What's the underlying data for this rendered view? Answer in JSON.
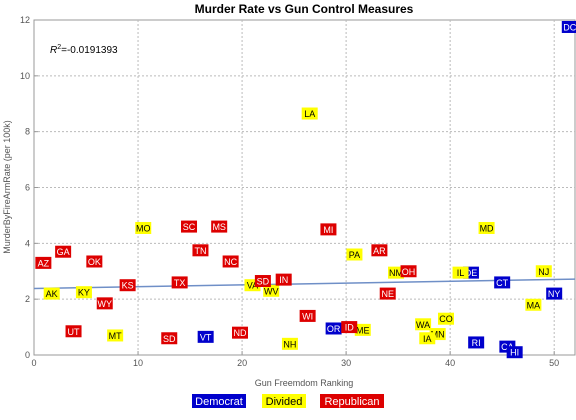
{
  "chart_data": {
    "type": "scatter",
    "title": "Murder Rate vs Gun Control Measures",
    "xlabel": "Gun Freemdom Ranking",
    "ylabel": "MurderByFireArmRate  (per 100k)",
    "xlim": [
      0,
      52
    ],
    "ylim": [
      0,
      12
    ],
    "xticks": [
      0,
      10,
      20,
      30,
      40,
      50
    ],
    "yticks": [
      0,
      2,
      4,
      6,
      8,
      10,
      12
    ],
    "grid": true,
    "legend_position": "bottom",
    "annotation": "R",
    "annotation_sup": "2",
    "annotation_value": "=-0.0191393",
    "trendline": {
      "x": [
        0,
        52
      ],
      "y": [
        2.38,
        2.72
      ],
      "color": "#6f8fc7"
    },
    "colors": {
      "Democrat": "#0000cc",
      "Divided": "#ffff00",
      "Republican": "#dd0000"
    },
    "text_colors": {
      "Democrat": "#ffffff",
      "Divided": "#000000",
      "Republican": "#ffffff"
    },
    "series": [
      {
        "name": "Democrat",
        "points": [
          {
            "label": "DC",
            "x": 51.5,
            "y": 11.75
          },
          {
            "label": "DE",
            "x": 42,
            "y": 2.95
          },
          {
            "label": "CT",
            "x": 45,
            "y": 2.6
          },
          {
            "label": "NY",
            "x": 50,
            "y": 2.2
          },
          {
            "label": "VT",
            "x": 16.5,
            "y": 0.65
          },
          {
            "label": "OR",
            "x": 28.8,
            "y": 0.95
          },
          {
            "label": "RI",
            "x": 42.5,
            "y": 0.45
          },
          {
            "label": "CA",
            "x": 45.5,
            "y": 0.3
          },
          {
            "label": "HI",
            "x": 46.2,
            "y": 0.1
          }
        ]
      },
      {
        "name": "Divided",
        "points": [
          {
            "label": "LA",
            "x": 26.5,
            "y": 8.65
          },
          {
            "label": "MO",
            "x": 10.5,
            "y": 4.55
          },
          {
            "label": "MD",
            "x": 43.5,
            "y": 4.55
          },
          {
            "label": "PA",
            "x": 30.8,
            "y": 3.6
          },
          {
            "label": "NM",
            "x": 34.8,
            "y": 2.95
          },
          {
            "label": "IL",
            "x": 41,
            "y": 2.95
          },
          {
            "label": "NJ",
            "x": 49,
            "y": 3.0
          },
          {
            "label": "VA",
            "x": 21,
            "y": 2.5
          },
          {
            "label": "WV",
            "x": 22.8,
            "y": 2.3
          },
          {
            "label": "AK",
            "x": 1.7,
            "y": 2.2
          },
          {
            "label": "KY",
            "x": 4.8,
            "y": 2.25
          },
          {
            "label": "MA",
            "x": 48,
            "y": 1.8
          },
          {
            "label": "CO",
            "x": 39.6,
            "y": 1.3
          },
          {
            "label": "WA",
            "x": 37.4,
            "y": 1.1
          },
          {
            "label": "ME",
            "x": 31.6,
            "y": 0.9
          },
          {
            "label": "MN",
            "x": 38.8,
            "y": 0.75
          },
          {
            "label": "IA",
            "x": 37.8,
            "y": 0.6
          },
          {
            "label": "MT",
            "x": 7.8,
            "y": 0.7
          },
          {
            "label": "NH",
            "x": 24.6,
            "y": 0.4
          }
        ]
      },
      {
        "name": "Republican",
        "points": [
          {
            "label": "SC",
            "x": 14.9,
            "y": 4.6
          },
          {
            "label": "MS",
            "x": 17.8,
            "y": 4.6
          },
          {
            "label": "MI",
            "x": 28.3,
            "y": 4.5
          },
          {
            "label": "GA",
            "x": 2.8,
            "y": 3.7
          },
          {
            "label": "TN",
            "x": 16,
            "y": 3.75
          },
          {
            "label": "AR",
            "x": 33.2,
            "y": 3.75
          },
          {
            "label": "AZ",
            "x": 0.9,
            "y": 3.3
          },
          {
            "label": "OK",
            "x": 5.8,
            "y": 3.35
          },
          {
            "label": "NC",
            "x": 18.9,
            "y": 3.35
          },
          {
            "label": "OH",
            "x": 36,
            "y": 3.0
          },
          {
            "label": "TX",
            "x": 14,
            "y": 2.6
          },
          {
            "label": "KS",
            "x": 9,
            "y": 2.5
          },
          {
            "label": "IN",
            "x": 24,
            "y": 2.7
          },
          {
            "label": "SD",
            "x": 22,
            "y": 2.65
          },
          {
            "label": "NE",
            "x": 34,
            "y": 2.2
          },
          {
            "label": "WY",
            "x": 6.8,
            "y": 1.85
          },
          {
            "label": "WI",
            "x": 26.3,
            "y": 1.4
          },
          {
            "label": "UT",
            "x": 3.8,
            "y": 0.85
          },
          {
            "label": "ND",
            "x": 19.8,
            "y": 0.8
          },
          {
            "label": "ID",
            "x": 30.3,
            "y": 1.0
          },
          {
            "label": "SD",
            "x": 13,
            "y": 0.6
          }
        ]
      }
    ]
  }
}
